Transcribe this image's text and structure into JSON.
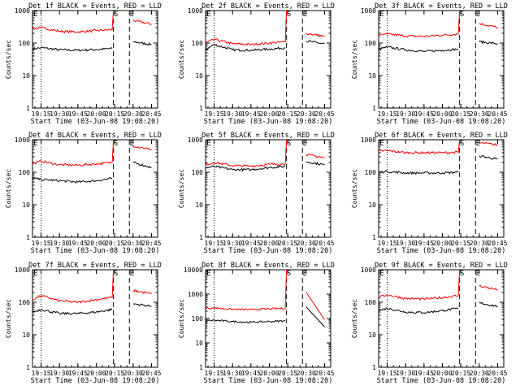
{
  "figure": {
    "ylabel": "Counts/sec",
    "xlabel": "Start Time (03-Jun-08 19:08:20)",
    "x_ticks": [
      "19:15",
      "19:30",
      "19:45",
      "20:00",
      "20:15",
      "20:30",
      "20:45"
    ],
    "event_marks": [
      "S",
      "E"
    ],
    "colors": {
      "events": "#000000",
      "lld": "#ff0000"
    }
  },
  "chart_data": [
    {
      "type": "line",
      "title": "Det 1f BLACK = Events, RED = LLD",
      "ylim": [
        1,
        1000
      ],
      "yscale": "log",
      "y_ticks": [
        "1",
        "10",
        "100",
        "1000"
      ],
      "x": [
        "19:08",
        "19:15",
        "19:30",
        "19:45",
        "20:00",
        "20:13",
        "20:14",
        "20:27",
        "20:30",
        "20:45"
      ],
      "series": [
        {
          "name": "Events",
          "values": [
            65,
            72,
            62,
            60,
            63,
            68,
            null,
            null,
            110,
            90
          ]
        },
        {
          "name": "LLD",
          "values": [
            270,
            300,
            230,
            220,
            240,
            260,
            1000,
            null,
            500,
            380
          ]
        }
      ]
    },
    {
      "type": "line",
      "title": "Det 2f BLACK = Events, RED = LLD",
      "ylim": [
        1,
        1000
      ],
      "yscale": "log",
      "y_ticks": [
        "1",
        "10",
        "100",
        "1000"
      ],
      "x": [
        "19:08",
        "19:15",
        "19:30",
        "19:45",
        "20:00",
        "20:13",
        "20:14",
        "20:27",
        "20:30",
        "20:45"
      ],
      "series": [
        {
          "name": "Events",
          "values": [
            62,
            90,
            62,
            60,
            65,
            72,
            null,
            null,
            115,
            95
          ]
        },
        {
          "name": "LLD",
          "values": [
            100,
            130,
            95,
            90,
            100,
            110,
            1000,
            null,
            200,
            160
          ]
        }
      ]
    },
    {
      "type": "line",
      "title": "Det 3f BLACK = Events, RED = LLD",
      "ylim": [
        1,
        1000
      ],
      "yscale": "log",
      "y_ticks": [
        "1",
        "10",
        "100",
        "1000"
      ],
      "x": [
        "19:08",
        "19:15",
        "19:30",
        "19:45",
        "20:00",
        "20:13",
        "20:14",
        "20:27",
        "20:30",
        "20:45"
      ],
      "series": [
        {
          "name": "Events",
          "values": [
            65,
            75,
            62,
            55,
            60,
            65,
            null,
            null,
            110,
            95
          ]
        },
        {
          "name": "LLD",
          "values": [
            170,
            190,
            165,
            160,
            175,
            190,
            1000,
            null,
            400,
            300
          ]
        }
      ]
    },
    {
      "type": "line",
      "title": "Det 4f BLACK = Events, RED = LLD",
      "ylim": [
        1,
        1000
      ],
      "yscale": "log",
      "y_ticks": [
        "1",
        "10",
        "100",
        "1000"
      ],
      "x": [
        "19:08",
        "19:15",
        "19:30",
        "19:45",
        "20:00",
        "20:13",
        "20:14",
        "20:27",
        "20:30",
        "20:45"
      ],
      "series": [
        {
          "name": "Events",
          "values": [
            65,
            60,
            55,
            50,
            55,
            65,
            null,
            null,
            200,
            140
          ]
        },
        {
          "name": "LLD",
          "values": [
            180,
            220,
            170,
            165,
            180,
            200,
            1000,
            null,
            650,
            500
          ]
        }
      ]
    },
    {
      "type": "line",
      "title": "Det 5f BLACK = Events, RED = LLD",
      "ylim": [
        1,
        1000
      ],
      "yscale": "log",
      "y_ticks": [
        "1",
        "10",
        "100",
        "1000"
      ],
      "x": [
        "19:08",
        "19:15",
        "19:30",
        "19:45",
        "20:00",
        "20:13",
        "20:14",
        "20:27",
        "20:30",
        "20:45"
      ],
      "series": [
        {
          "name": "Events",
          "values": [
            135,
            150,
            120,
            120,
            140,
            150,
            null,
            null,
            210,
            170
          ]
        },
        {
          "name": "LLD",
          "values": [
            170,
            200,
            160,
            155,
            175,
            180,
            1000,
            null,
            350,
            280
          ]
        }
      ]
    },
    {
      "type": "line",
      "title": "Det 6f BLACK = Events, RED = LLD",
      "ylim": [
        1,
        1000
      ],
      "yscale": "log",
      "y_ticks": [
        "1",
        "10",
        "100",
        "1000"
      ],
      "x": [
        "19:08",
        "19:15",
        "19:30",
        "19:45",
        "20:00",
        "20:13",
        "20:14",
        "20:27",
        "20:30",
        "20:45"
      ],
      "series": [
        {
          "name": "Events",
          "values": [
            100,
            105,
            95,
            95,
            95,
            100,
            null,
            null,
            320,
            250
          ]
        },
        {
          "name": "LLD",
          "values": [
            450,
            460,
            400,
            400,
            400,
            410,
            1000,
            null,
            800,
            700
          ]
        }
      ]
    },
    {
      "type": "line",
      "title": "Det 7f BLACK = Events, RED = LLD",
      "ylim": [
        1,
        1000
      ],
      "yscale": "log",
      "y_ticks": [
        "1",
        "10",
        "100",
        "1000"
      ],
      "x": [
        "19:08",
        "19:15",
        "19:30",
        "19:45",
        "20:00",
        "20:13",
        "20:14",
        "20:27",
        "20:30",
        "20:45"
      ],
      "series": [
        {
          "name": "Events",
          "values": [
            50,
            60,
            45,
            45,
            50,
            60,
            null,
            null,
            90,
            75
          ]
        },
        {
          "name": "LLD",
          "values": [
            120,
            160,
            110,
            100,
            120,
            140,
            1000,
            null,
            230,
            180
          ]
        }
      ]
    },
    {
      "type": "line",
      "title": "Det 8f BLACK = Events, RED = LLD",
      "ylim": [
        1,
        10000
      ],
      "yscale": "log",
      "y_ticks": [
        "1",
        "10",
        "100",
        "1000",
        "10000"
      ],
      "x": [
        "19:08",
        "19:15",
        "19:30",
        "19:45",
        "20:00",
        "20:13",
        "20:14",
        "20:27",
        "20:30",
        "20:45"
      ],
      "series": [
        {
          "name": "Events",
          "values": [
            80,
            85,
            75,
            70,
            75,
            80,
            null,
            null,
            300,
            45
          ]
        },
        {
          "name": "LLD",
          "values": [
            260,
            270,
            240,
            230,
            250,
            260,
            10000,
            null,
            1200,
            90
          ]
        }
      ]
    },
    {
      "type": "line",
      "title": "Det 9f BLACK = Events, RED = LLD",
      "ylim": [
        1,
        1000
      ],
      "yscale": "log",
      "y_ticks": [
        "1",
        "10",
        "100",
        "1000"
      ],
      "x": [
        "19:08",
        "19:15",
        "19:30",
        "19:45",
        "20:00",
        "20:13",
        "20:14",
        "20:27",
        "20:30",
        "20:45"
      ],
      "series": [
        {
          "name": "Events",
          "values": [
            55,
            65,
            50,
            48,
            55,
            65,
            null,
            null,
            95,
            75
          ]
        },
        {
          "name": "LLD",
          "values": [
            140,
            170,
            130,
            125,
            140,
            160,
            1000,
            null,
            320,
            240
          ]
        }
      ]
    }
  ]
}
